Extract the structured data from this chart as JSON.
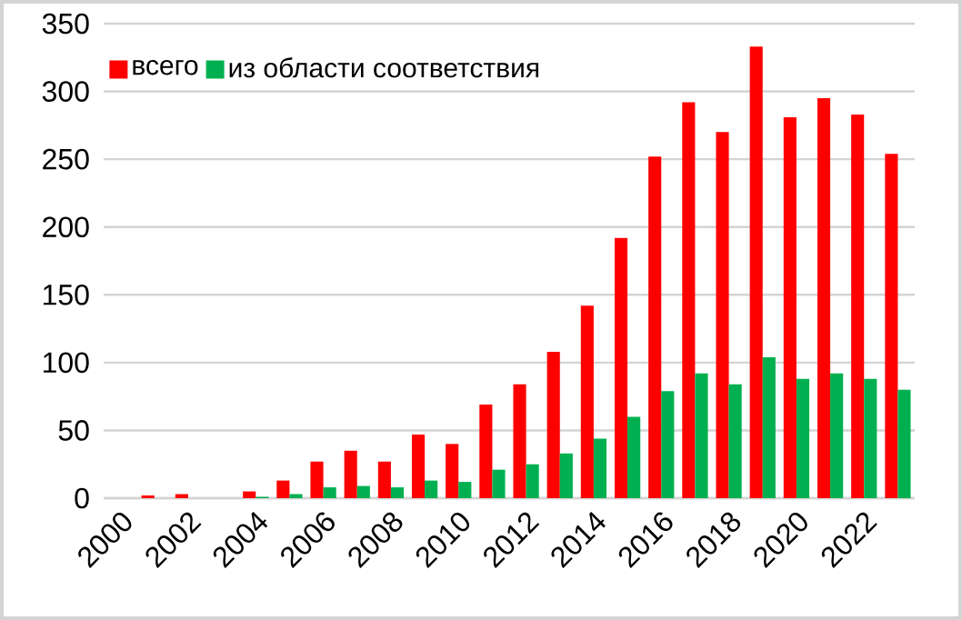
{
  "chart_data": {
    "type": "bar",
    "categories": [
      "2000",
      null,
      "2002",
      null,
      "2004",
      null,
      "2006",
      null,
      "2008",
      null,
      "2010",
      null,
      "2012",
      null,
      "2014",
      null,
      "2016",
      null,
      "2018",
      null,
      "2020",
      null,
      "2022",
      null
    ],
    "series": [
      {
        "name": "всего",
        "color": "#ff0000",
        "values": [
          0,
          2,
          3,
          0,
          5,
          13,
          27,
          35,
          27,
          47,
          40,
          69,
          84,
          108,
          142,
          192,
          252,
          292,
          270,
          333,
          281,
          295,
          283,
          254
        ]
      },
      {
        "name": "из области соответствия",
        "color": "#00b050",
        "values": [
          0,
          0,
          0,
          0,
          1,
          3,
          8,
          9,
          8,
          13,
          12,
          21,
          25,
          33,
          44,
          60,
          79,
          92,
          84,
          104,
          88,
          92,
          88,
          80
        ]
      }
    ],
    "ylim": [
      0,
      350
    ],
    "yticks": [
      0,
      50,
      100,
      150,
      200,
      250,
      300,
      350
    ],
    "grid": "y",
    "legend": "top left"
  }
}
